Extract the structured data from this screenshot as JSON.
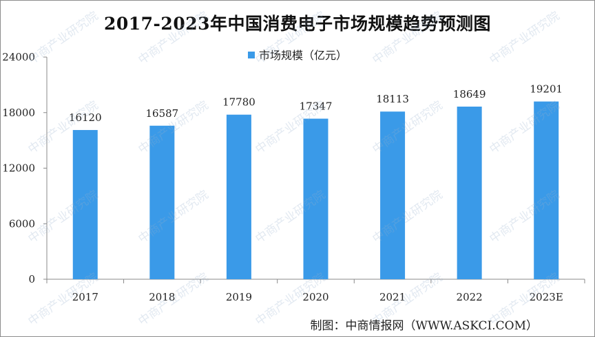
{
  "title": "2017-2023年中国消费电子市场规模趋势预测图",
  "credit": "制图：中商情报网（WWW.ASKCI.COM）",
  "watermark": "中商产业研究院",
  "colors": {
    "bar": "#3a9ae8",
    "axis": "#888888",
    "text": "#222222"
  },
  "chart_data": {
    "type": "bar",
    "categories": [
      "2017",
      "2018",
      "2019",
      "2020",
      "2021",
      "2022",
      "2023E"
    ],
    "series": [
      {
        "name": "市场规模（亿元）",
        "values": [
          16120,
          16587,
          17780,
          17347,
          18113,
          18649,
          19201
        ]
      }
    ],
    "ylim": [
      0,
      24000
    ],
    "yticks": [
      "0",
      "6000",
      "12000",
      "18000",
      "24000"
    ],
    "grid": false,
    "legend": "top"
  }
}
